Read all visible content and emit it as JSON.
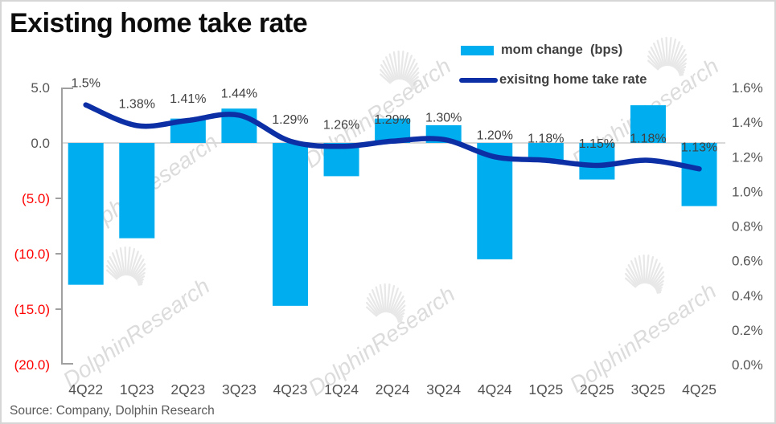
{
  "title": "Existing home take rate",
  "source_note": "Source: Company, Dolphin Research",
  "watermark_text": "DolphinResearch",
  "colors": {
    "bar": "#00AEEF",
    "line": "#0C2FA6",
    "axis_line": "#A0A0A0",
    "zero_gridline": "#D9D9D9",
    "tick_label": "#555555",
    "negative_tick_label": "#FF0000",
    "category_label": "#525252",
    "data_label": "#404040",
    "legend_text": "#404040",
    "watermark": "#DCDCDC"
  },
  "legend": {
    "items": [
      {
        "label": "mom change  (bps)",
        "marker": "bar"
      },
      {
        "label": "exisitng home take rate",
        "marker": "line"
      }
    ]
  },
  "chart_data": {
    "type": "combo_bar_line",
    "title": "Existing home take rate",
    "categories": [
      "4Q22",
      "1Q23",
      "2Q23",
      "3Q23",
      "4Q23",
      "1Q24",
      "2Q24",
      "3Q24",
      "4Q24",
      "1Q25",
      "2Q25",
      "3Q25",
      "4Q25"
    ],
    "series": [
      {
        "name": "mom change  (bps)",
        "type": "bar",
        "axis": "left",
        "values": [
          -12.8,
          -8.6,
          2.2,
          3.1,
          -14.7,
          -3.0,
          2.2,
          1.6,
          -10.5,
          -1.6,
          -3.3,
          3.4,
          -5.7
        ]
      },
      {
        "name": "exisitng home take rate",
        "type": "line",
        "axis": "right",
        "values": [
          1.5,
          1.38,
          1.41,
          1.44,
          1.29,
          1.26,
          1.29,
          1.3,
          1.2,
          1.18,
          1.15,
          1.18,
          1.13
        ],
        "point_labels": [
          "1.5%",
          "1.38%",
          "1.41%",
          "1.44%",
          "1.29%",
          "1.26%",
          "1.29%",
          "1.30%",
          "1.20%",
          "1.18%",
          "1.15%",
          "1.18%",
          "1.13%"
        ]
      }
    ],
    "axes": {
      "left": {
        "range": [
          5,
          -20
        ],
        "tick_values": [
          5,
          0,
          -5,
          -10,
          -15,
          -20
        ],
        "tick_labels": [
          "5.0",
          "0.0",
          "(5.0)",
          "(10.0)",
          "(15.0)",
          "(20.0)"
        ],
        "negatives_in_red": true
      },
      "right": {
        "range": [
          1.6,
          0
        ],
        "tick_values": [
          1.6,
          1.4,
          1.2,
          1.0,
          0.8,
          0.6,
          0.4,
          0.2,
          0.0
        ],
        "tick_labels": [
          "1.6%",
          "1.4%",
          "1.2%",
          "1.0%",
          "0.8%",
          "0.6%",
          "0.4%",
          "0.2%",
          "0.0%"
        ]
      }
    },
    "gridlines": "zero-line-only",
    "legend_position": "top-right"
  }
}
